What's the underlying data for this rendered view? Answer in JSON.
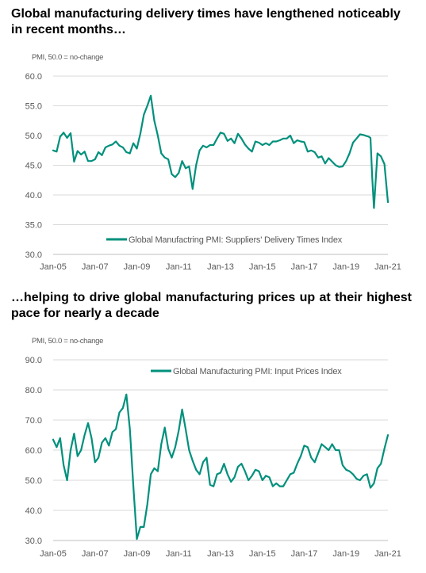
{
  "headings": {
    "chart1": "Global manufacturing delivery times have lengthened noticeably in recent months…",
    "chart2": "…helping to drive global manufacturing prices up at their highest pace for nearly a decade"
  },
  "colors": {
    "line": "#00907C",
    "grid": "#D9D9D9",
    "axis": "#BFBFBF",
    "text": "#595959"
  },
  "chart_data": [
    {
      "type": "line",
      "title": "",
      "ylabel": "PMI, 50.0 = no-change",
      "xlabel": "",
      "ylim": [
        30.0,
        60.0
      ],
      "yticks": [
        "60.0",
        "55.0",
        "50.0",
        "45.0",
        "40.0",
        "35.0",
        "30.0"
      ],
      "xticks": [
        "Jan-05",
        "Jan-07",
        "Jan-09",
        "Jan-11",
        "Jan-13",
        "Jan-15",
        "Jan-17",
        "Jan-19",
        "Jan-21"
      ],
      "grid": "horizontal",
      "legend_position": "bottom-center",
      "series": [
        {
          "name": "Global Manufactring PMI: Suppliers' Delivery Times Index",
          "x": [
            "2005-01",
            "2005-03",
            "2005-05",
            "2005-07",
            "2005-09",
            "2005-11",
            "2006-01",
            "2006-03",
            "2006-05",
            "2006-07",
            "2006-09",
            "2006-11",
            "2007-01",
            "2007-03",
            "2007-05",
            "2007-07",
            "2007-09",
            "2007-11",
            "2008-01",
            "2008-03",
            "2008-05",
            "2008-07",
            "2008-09",
            "2008-11",
            "2009-01",
            "2009-03",
            "2009-05",
            "2009-07",
            "2009-09",
            "2009-11",
            "2010-01",
            "2010-03",
            "2010-05",
            "2010-07",
            "2010-09",
            "2010-11",
            "2011-01",
            "2011-03",
            "2011-05",
            "2011-07",
            "2011-09",
            "2011-11",
            "2012-01",
            "2012-03",
            "2012-05",
            "2012-07",
            "2012-09",
            "2012-11",
            "2013-01",
            "2013-03",
            "2013-05",
            "2013-07",
            "2013-09",
            "2013-11",
            "2014-01",
            "2014-03",
            "2014-05",
            "2014-07",
            "2014-09",
            "2014-11",
            "2015-01",
            "2015-03",
            "2015-05",
            "2015-07",
            "2015-09",
            "2015-11",
            "2016-01",
            "2016-03",
            "2016-05",
            "2016-07",
            "2016-09",
            "2016-11",
            "2017-01",
            "2017-03",
            "2017-05",
            "2017-07",
            "2017-09",
            "2017-11",
            "2018-01",
            "2018-03",
            "2018-05",
            "2018-07",
            "2018-09",
            "2018-11",
            "2019-01",
            "2019-03",
            "2019-05",
            "2019-07",
            "2019-09",
            "2019-11",
            "2020-01",
            "2020-02",
            "2020-03",
            "2020-04",
            "2020-05",
            "2020-06",
            "2020-07",
            "2020-09",
            "2020-11",
            "2020-12",
            "2021-01"
          ],
          "y": [
            47.5,
            47.3,
            49.8,
            50.5,
            49.6,
            50.4,
            45.6,
            47.4,
            46.8,
            47.3,
            45.7,
            45.7,
            46.0,
            47.2,
            46.7,
            48.0,
            48.3,
            48.5,
            49.0,
            48.3,
            48.0,
            47.2,
            47.0,
            48.7,
            47.8,
            50.3,
            53.5,
            55.0,
            56.7,
            52.5,
            50.0,
            47.0,
            46.3,
            46.0,
            43.5,
            43.0,
            43.7,
            45.7,
            44.5,
            44.8,
            41.0,
            45.0,
            47.5,
            48.3,
            48.0,
            48.4,
            48.4,
            49.5,
            50.5,
            50.3,
            49.1,
            49.5,
            48.7,
            50.3,
            49.5,
            48.5,
            47.8,
            47.3,
            49.0,
            48.8,
            48.4,
            48.7,
            48.4,
            49.0,
            49.0,
            49.2,
            49.5,
            49.5,
            50.0,
            48.7,
            49.2,
            49.0,
            48.9,
            47.3,
            47.5,
            47.2,
            46.3,
            46.5,
            45.3,
            46.2,
            45.6,
            45.0,
            44.7,
            44.8,
            45.7,
            47.0,
            48.8,
            49.5,
            50.2,
            50.1,
            49.9,
            49.8,
            49.6,
            43.0,
            37.8,
            42.5,
            47.0,
            46.5,
            45.2,
            42.0,
            38.8
          ]
        }
      ]
    },
    {
      "type": "line",
      "title": "",
      "ylabel": "PMI, 50.0 = no-change",
      "xlabel": "",
      "ylim": [
        30.0,
        90.0
      ],
      "yticks": [
        "90.0",
        "80.0",
        "70.0",
        "60.0",
        "50.0",
        "40.0",
        "30.0"
      ],
      "xticks": [
        "Jan-05",
        "Jan-07",
        "Jan-09",
        "Jan-11",
        "Jan-13",
        "Jan-15",
        "Jan-17",
        "Jan-19",
        "Jan-21"
      ],
      "grid": "horizontal",
      "legend_position": "top-center",
      "series": [
        {
          "name": "Global Manufacturing PMI: Input Prices Index",
          "x": [
            "2005-01",
            "2005-03",
            "2005-05",
            "2005-07",
            "2005-09",
            "2005-11",
            "2006-01",
            "2006-03",
            "2006-05",
            "2006-07",
            "2006-09",
            "2006-11",
            "2007-01",
            "2007-03",
            "2007-05",
            "2007-07",
            "2007-09",
            "2007-11",
            "2008-01",
            "2008-03",
            "2008-05",
            "2008-07",
            "2008-09",
            "2008-11",
            "2009-01",
            "2009-03",
            "2009-05",
            "2009-07",
            "2009-09",
            "2009-11",
            "2010-01",
            "2010-03",
            "2010-05",
            "2010-07",
            "2010-09",
            "2010-11",
            "2011-01",
            "2011-03",
            "2011-05",
            "2011-07",
            "2011-09",
            "2011-11",
            "2012-01",
            "2012-03",
            "2012-05",
            "2012-07",
            "2012-09",
            "2012-11",
            "2013-01",
            "2013-03",
            "2013-05",
            "2013-07",
            "2013-09",
            "2013-11",
            "2014-01",
            "2014-03",
            "2014-05",
            "2014-07",
            "2014-09",
            "2014-11",
            "2015-01",
            "2015-03",
            "2015-05",
            "2015-07",
            "2015-09",
            "2015-11",
            "2016-01",
            "2016-03",
            "2016-05",
            "2016-07",
            "2016-09",
            "2016-11",
            "2017-01",
            "2017-03",
            "2017-05",
            "2017-07",
            "2017-09",
            "2017-11",
            "2018-01",
            "2018-03",
            "2018-05",
            "2018-07",
            "2018-09",
            "2018-11",
            "2019-01",
            "2019-03",
            "2019-05",
            "2019-07",
            "2019-09",
            "2019-11",
            "2020-01",
            "2020-03",
            "2020-05",
            "2020-07",
            "2020-09",
            "2020-11",
            "2021-01"
          ],
          "y": [
            63.5,
            61.0,
            64.0,
            55.0,
            50.0,
            60.0,
            65.5,
            58.0,
            60.0,
            65.0,
            69.0,
            64.0,
            56.0,
            57.5,
            62.5,
            64.0,
            61.5,
            66.0,
            67.0,
            72.5,
            74.0,
            78.5,
            67.0,
            48.0,
            30.5,
            34.5,
            34.5,
            42.0,
            52.0,
            54.0,
            53.0,
            62.0,
            67.5,
            60.5,
            57.5,
            61.0,
            66.5,
            73.5,
            67.0,
            60.0,
            56.5,
            53.5,
            52.0,
            56.0,
            57.5,
            48.5,
            48.0,
            52.0,
            52.5,
            55.5,
            52.0,
            49.5,
            51.0,
            54.5,
            55.5,
            53.0,
            50.0,
            51.5,
            53.5,
            53.0,
            50.0,
            51.5,
            51.0,
            48.0,
            49.0,
            48.0,
            48.0,
            50.0,
            52.0,
            52.5,
            55.5,
            58.0,
            61.5,
            61.0,
            57.5,
            56.0,
            59.0,
            62.0,
            61.0,
            60.0,
            62.0,
            60.0,
            60.0,
            55.0,
            53.5,
            53.0,
            52.0,
            50.5,
            50.0,
            51.5,
            52.0,
            47.5,
            49.0,
            54.0,
            55.5,
            60.5,
            65.0
          ]
        }
      ]
    }
  ]
}
